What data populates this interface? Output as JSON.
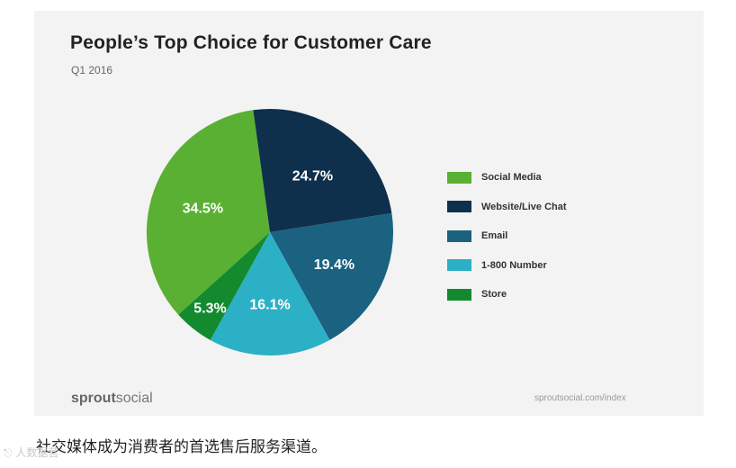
{
  "chart_data": {
    "type": "pie",
    "title": "People’s Top Choice for Customer Care",
    "subtitle": "Q1 2016",
    "slices": [
      {
        "label": "Social Media",
        "value": 34.5,
        "value_label": "34.5%",
        "color": "#5ab032"
      },
      {
        "label": "Website/Live Chat",
        "value": 24.7,
        "value_label": "24.7%",
        "color": "#0f304c"
      },
      {
        "label": "Email",
        "value": 19.4,
        "value_label": "19.4%",
        "color": "#1b6180"
      },
      {
        "label": "1-800 Number",
        "value": 16.1,
        "value_label": "16.1%",
        "color": "#2bb0c6"
      },
      {
        "label": "Store",
        "value": 5.3,
        "value_label": "5.3%",
        "color": "#138a2e"
      }
    ],
    "legend_position": "right"
  },
  "footer": {
    "brand_bold": "sprout",
    "brand_rest": "social",
    "url": "sproutsocial.com/index"
  },
  "caption": "社交媒体成为消费者的首选售后服务渠道。",
  "watermark": "人数据营"
}
